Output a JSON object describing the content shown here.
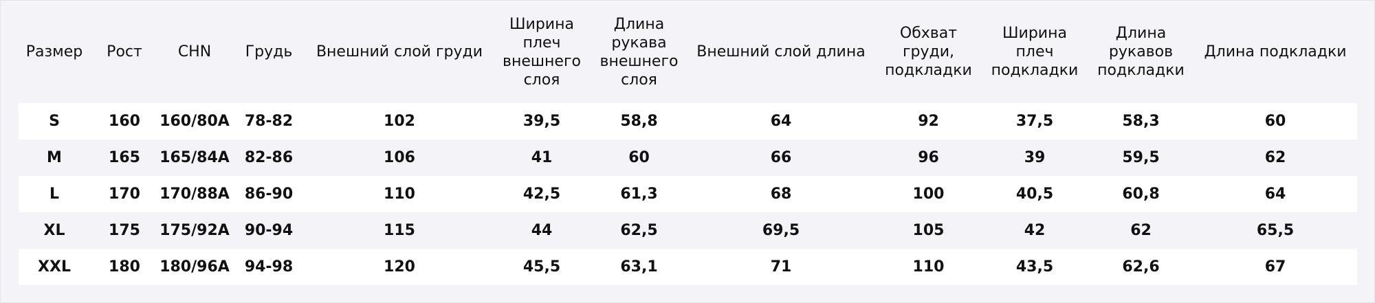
{
  "table": {
    "header": [
      "Размер",
      "Рост",
      "CHN",
      "Грудь",
      "Внешний слой груди",
      "Ширина плеч внешнего слоя",
      "Длина рукава внешнего слоя",
      "Внешний слой длина",
      "Обхват груди, подкладки",
      "Ширина плеч подкладки",
      "Длина рукавов подкладки",
      "Длина подкладки"
    ],
    "rows": [
      [
        "S",
        "160",
        "160/80A",
        "78-82",
        "102",
        "39,5",
        "58,8",
        "64",
        "92",
        "37,5",
        "58,3",
        "60"
      ],
      [
        "M",
        "165",
        "165/84A",
        "82-86",
        "106",
        "41",
        "60",
        "66",
        "96",
        "39",
        "59,5",
        "62"
      ],
      [
        "L",
        "170",
        "170/88A",
        "86-90",
        "110",
        "42,5",
        "61,3",
        "68",
        "100",
        "40,5",
        "60,8",
        "64"
      ],
      [
        "XL",
        "175",
        "175/92A",
        "90-94",
        "115",
        "44",
        "62,5",
        "69,5",
        "105",
        "42",
        "62",
        "65,5"
      ],
      [
        "XXL",
        "180",
        "180/96A",
        "94-98",
        "120",
        "45,5",
        "63,1",
        "71",
        "110",
        "43,5",
        "62,6",
        "67"
      ]
    ]
  }
}
